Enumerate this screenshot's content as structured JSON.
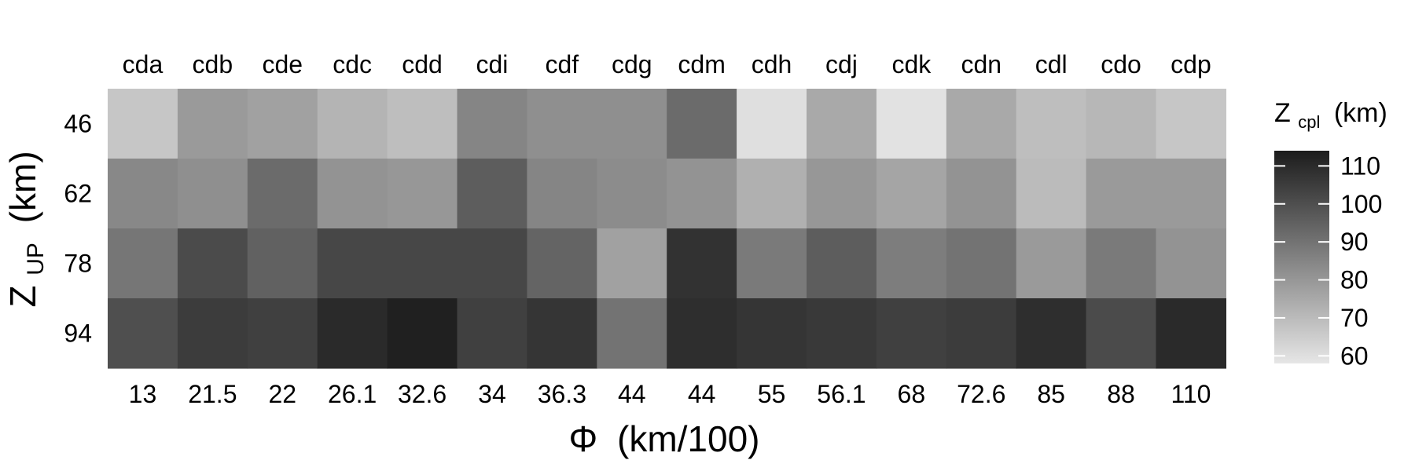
{
  "chart_data": {
    "type": "heatmap",
    "column_labels": [
      "cda",
      "cdb",
      "cde",
      "cdc",
      "cdd",
      "cdi",
      "cdf",
      "cdg",
      "cdm",
      "cdh",
      "cdj",
      "cdk",
      "cdn",
      "cdl",
      "cdo",
      "cdp"
    ],
    "x_ticks": [
      "13",
      "21.5",
      "22",
      "26.1",
      "32.6",
      "34",
      "36.3",
      "44",
      "44",
      "55",
      "56.1",
      "68",
      "72.6",
      "85",
      "88",
      "110"
    ],
    "y_ticks": [
      "46",
      "62",
      "78",
      "94"
    ],
    "x_label": {
      "main": "Φ",
      "unit": "(km/100)"
    },
    "y_label": {
      "main": "Z",
      "sub": "UP",
      "unit": "(km)"
    },
    "legend": {
      "title_main": "Z",
      "title_sub": "cpl",
      "title_unit": "(km)",
      "ticks": [
        60,
        70,
        80,
        90,
        100,
        110
      ],
      "range": [
        58,
        114
      ],
      "color_low": "#e6e6e6",
      "color_high": "#1c1c1c"
    },
    "values": [
      [
        67,
        79,
        77,
        72,
        69,
        85,
        82,
        82,
        92,
        60,
        75,
        59,
        75,
        69,
        71,
        67
      ],
      [
        84,
        82,
        92,
        81,
        80,
        96,
        85,
        83,
        81,
        73,
        80,
        76,
        81,
        70,
        79,
        79
      ],
      [
        89,
        101,
        95,
        102,
        102,
        102,
        94,
        77,
        108,
        88,
        96,
        87,
        90,
        79,
        88,
        81
      ],
      [
        100,
        105,
        104,
        110,
        113,
        104,
        107,
        90,
        109,
        107,
        106,
        104,
        105,
        109,
        101,
        110
      ]
    ]
  }
}
